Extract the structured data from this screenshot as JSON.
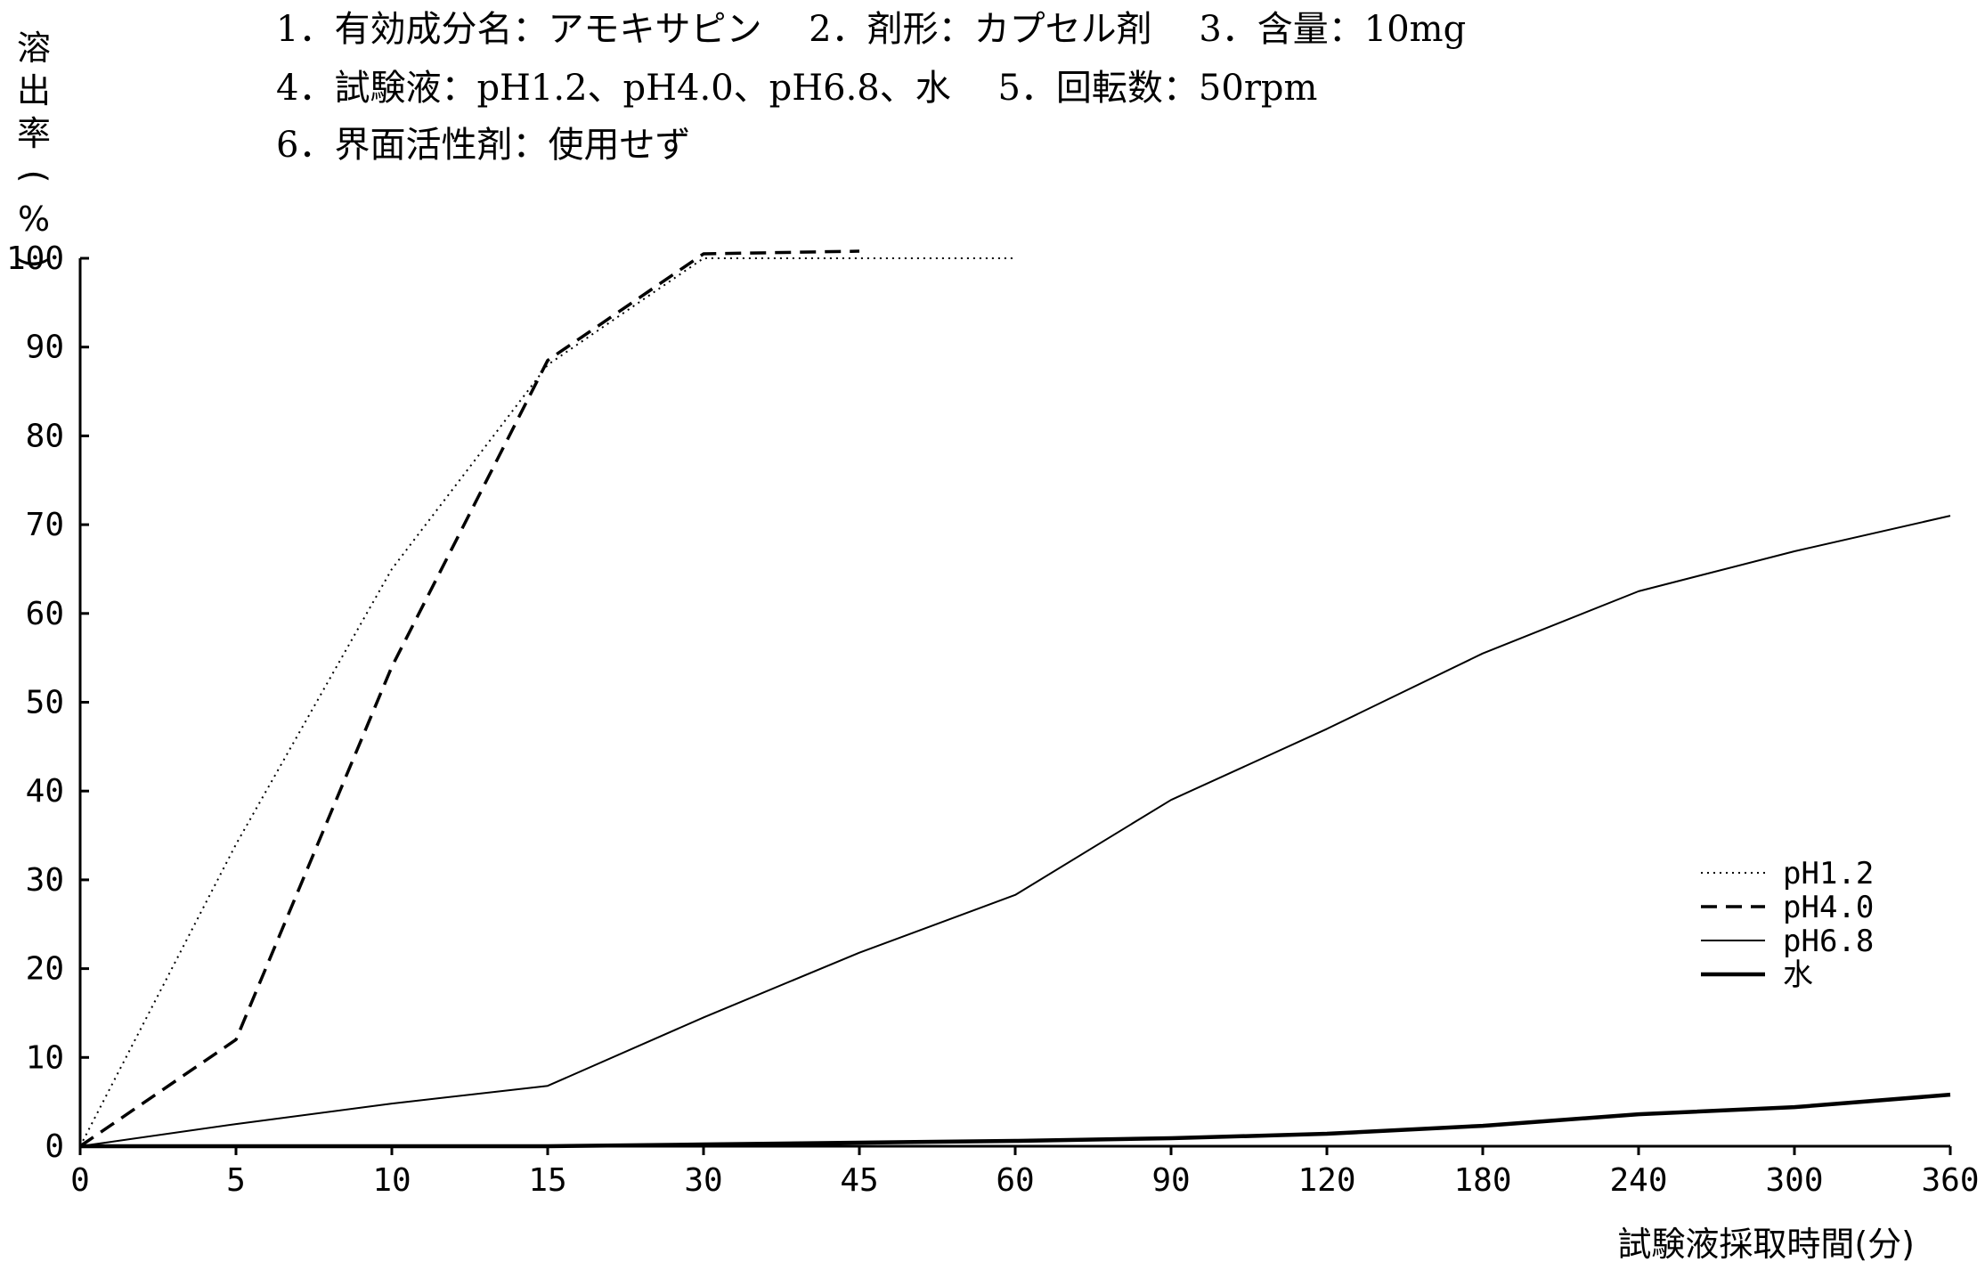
{
  "header": {
    "line1": "1．有効成分名：アモキサピン　 2．剤形：カプセル剤　 3．含量：10mg",
    "line2": "4．試験液：pH1.2、pH4.0、pH6.8、水　 5．回転数：50rpm",
    "line3": "6．界面活性剤：使用せず"
  },
  "chart_data": {
    "type": "line",
    "ylabel_chars": [
      "溶",
      "出",
      "率"
    ],
    "ylabel_paren_open": "(",
    "ylabel_unit": "%",
    "ylabel_paren_close": ")",
    "xlabel": "試験液採取時間(分)",
    "categories": [
      "0",
      "5",
      "10",
      "15",
      "30",
      "45",
      "60",
      "90",
      "120",
      "180",
      "240",
      "300",
      "360"
    ],
    "yticks": [
      "0",
      "10",
      "20",
      "30",
      "40",
      "50",
      "60",
      "70",
      "80",
      "90",
      "100"
    ],
    "ylim": [
      0,
      100
    ],
    "grid": false,
    "legend_position": "right",
    "series": [
      {
        "name": "pH1.2",
        "style": "dotted",
        "values": [
          0,
          34,
          65,
          88,
          100,
          100,
          100,
          null,
          null,
          null,
          null,
          null,
          null
        ]
      },
      {
        "name": "pH4.0",
        "style": "dashed",
        "values": [
          0,
          12,
          54,
          88.5,
          100.5,
          100.8,
          null,
          null,
          null,
          null,
          null,
          null,
          null
        ]
      },
      {
        "name": "pH6.8",
        "style": "thin",
        "values": [
          0,
          2.5,
          4.8,
          6.8,
          14.5,
          21.8,
          28.3,
          39,
          47,
          55.5,
          62.5,
          67,
          71
        ]
      },
      {
        "name": "水",
        "style": "thick",
        "values": [
          0,
          0,
          0,
          0,
          0.2,
          0.4,
          0.6,
          0.9,
          1.4,
          2.3,
          3.6,
          4.4,
          5.8
        ]
      }
    ],
    "colors": {
      "line": "#000000",
      "background": "#ffffff"
    }
  }
}
